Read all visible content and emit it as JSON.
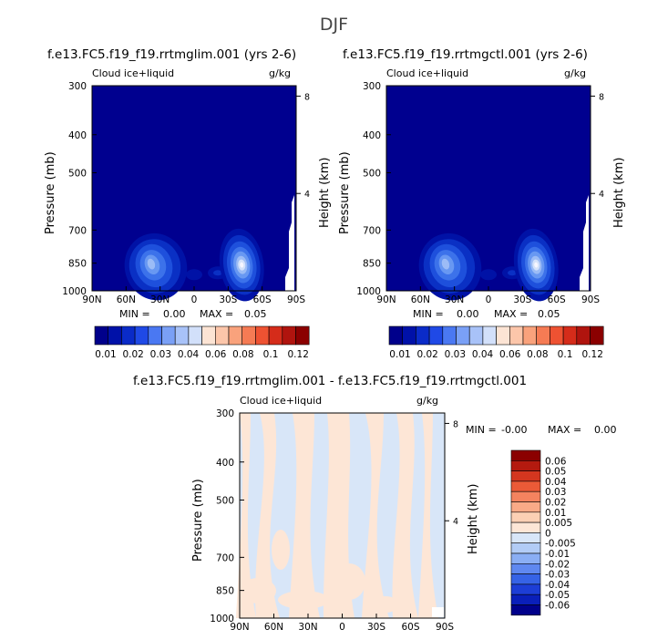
{
  "figure": {
    "season": "DJF",
    "variable": "Cloud ice+liquid",
    "units": "g/kg"
  },
  "chart_data": [
    {
      "type": "contour",
      "title": "f.e13.FC5.f19_f19.rrtmglim.001 (yrs 2-6)",
      "subtitle_left": "Cloud ice+liquid",
      "subtitle_right": "g/kg",
      "xlabel": "",
      "ylabel": "Pressure (mb)",
      "ylabel_right": "Height (km)",
      "x_tick_labels": [
        "90N",
        "60N",
        "30N",
        "0",
        "30S",
        "60S",
        "90S"
      ],
      "x_values": [
        90,
        60,
        30,
        0,
        -30,
        -60,
        -90
      ],
      "xlim": [
        90,
        -90
      ],
      "y_tick_labels": [
        "300",
        "400",
        "500",
        "700",
        "850",
        "1000"
      ],
      "y_values": [
        300,
        400,
        500,
        700,
        850,
        1000
      ],
      "ylim": [
        1000,
        300
      ],
      "height_tick_labels": [
        "8",
        "4"
      ],
      "height_values": [
        8,
        4
      ],
      "min_text": "MIN =",
      "min_value": "0.00",
      "max_text": "MAX =",
      "max_value": "0.05",
      "min": 0.0,
      "max": 0.05,
      "levels": [
        0.01,
        0.02,
        0.03,
        0.04,
        0.06,
        0.08,
        0.1,
        0.12
      ],
      "colorbar_labels": [
        "0.01",
        "0.02",
        "0.03",
        "0.04",
        "0.06",
        "0.08",
        "0.1",
        "0.12"
      ],
      "maxima": [
        {
          "lat": 37,
          "pressure": 850,
          "value": 0.03
        },
        {
          "lat": -42,
          "pressure": 850,
          "value": 0.05
        }
      ]
    },
    {
      "type": "contour",
      "title": "f.e13.FC5.f19_f19.rrtmgctl.001 (yrs 2-6)",
      "subtitle_left": "Cloud ice+liquid",
      "subtitle_right": "g/kg",
      "xlabel": "",
      "ylabel": "Pressure (mb)",
      "ylabel_right": "Height (km)",
      "x_tick_labels": [
        "90N",
        "60N",
        "30N",
        "0",
        "30S",
        "60S",
        "90S"
      ],
      "x_values": [
        90,
        60,
        30,
        0,
        -30,
        -60,
        -90
      ],
      "xlim": [
        90,
        -90
      ],
      "y_tick_labels": [
        "300",
        "400",
        "500",
        "700",
        "850",
        "1000"
      ],
      "y_values": [
        300,
        400,
        500,
        700,
        850,
        1000
      ],
      "ylim": [
        1000,
        300
      ],
      "height_tick_labels": [
        "8",
        "4"
      ],
      "height_values": [
        8,
        4
      ],
      "min_text": "MIN =",
      "min_value": "0.00",
      "max_text": "MAX =",
      "max_value": "0.05",
      "min": 0.0,
      "max": 0.05,
      "levels": [
        0.01,
        0.02,
        0.03,
        0.04,
        0.06,
        0.08,
        0.1,
        0.12
      ],
      "colorbar_labels": [
        "0.01",
        "0.02",
        "0.03",
        "0.04",
        "0.06",
        "0.08",
        "0.1",
        "0.12"
      ],
      "maxima": [
        {
          "lat": 37,
          "pressure": 850,
          "value": 0.03
        },
        {
          "lat": -42,
          "pressure": 850,
          "value": 0.05
        }
      ]
    },
    {
      "type": "contour",
      "title": "f.e13.FC5.f19_f19.rrtmglim.001 - f.e13.FC5.f19_f19.rrtmgctl.001",
      "subtitle_left": "Cloud ice+liquid",
      "subtitle_right": "g/kg",
      "xlabel": "",
      "ylabel": "Pressure (mb)",
      "ylabel_right": "Height (km)",
      "x_tick_labels": [
        "90N",
        "60N",
        "30N",
        "0",
        "30S",
        "60S",
        "90S"
      ],
      "x_values": [
        90,
        60,
        30,
        0,
        -30,
        -60,
        -90
      ],
      "xlim": [
        90,
        -90
      ],
      "y_tick_labels": [
        "300",
        "400",
        "500",
        "700",
        "850",
        "1000"
      ],
      "y_values": [
        300,
        400,
        500,
        700,
        850,
        1000
      ],
      "ylim": [
        1000,
        300
      ],
      "height_tick_labels": [
        "8",
        "4"
      ],
      "height_values": [
        8,
        4
      ],
      "min_text": "MIN =",
      "min_value": "-0.00",
      "max_text": "MAX =",
      "max_value": "0.00",
      "min": -0.0,
      "max": 0.0,
      "levels": [
        0.06,
        0.05,
        0.04,
        0.03,
        0.02,
        0.01,
        0.005,
        0,
        -0.005,
        -0.01,
        -0.02,
        -0.03,
        -0.04,
        -0.05,
        -0.06
      ],
      "colorbar_labels": [
        "0.06",
        "0.05",
        "0.04",
        "0.03",
        "0.02",
        "0.01",
        "0.005",
        "0",
        "-0.005",
        "-0.01",
        "-0.02",
        "-0.03",
        "-0.04",
        "-0.05",
        "-0.06"
      ]
    }
  ],
  "colors": {
    "background": "#00008f",
    "seq_fill": [
      "#0012a6",
      "#0a30c4",
      "#1e50dc",
      "#3c72ea",
      "#6898f2",
      "#9cbcf6",
      "#d4e2fa",
      "#f6f6ff"
    ],
    "seq_colorbar": [
      "#00008b",
      "#0011a8",
      "#0a2bc8",
      "#1f49e6",
      "#4a78f2",
      "#7aa0f6",
      "#a8c2f8",
      "#d2e0fa",
      "#fce4d4",
      "#fcc6aa",
      "#f9a27c",
      "#f57b54",
      "#ee5232",
      "#d52c1a",
      "#b0140e",
      "#8b0000"
    ],
    "div_colorbar": [
      "#8b0000",
      "#b41a0f",
      "#d4361f",
      "#eb5a37",
      "#f4835f",
      "#f9aa87",
      "#fcd0b4",
      "#fde6d6",
      "#d8e6f8",
      "#b2ccf6",
      "#8aaef4",
      "#5f88f0",
      "#3663e6",
      "#1d3ed6",
      "#0a1fba",
      "#00008b"
    ],
    "diff_pos": "#fde6d6",
    "diff_neg": "#d8e6f8"
  }
}
